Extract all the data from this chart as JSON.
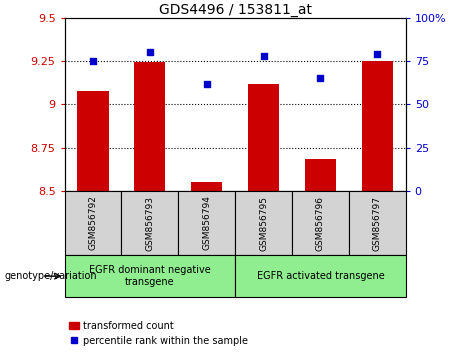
{
  "title": "GDS4496 / 153811_at",
  "categories": [
    "GSM856792",
    "GSM856793",
    "GSM856794",
    "GSM856795",
    "GSM856796",
    "GSM856797"
  ],
  "bar_values": [
    9.08,
    9.245,
    8.555,
    9.12,
    8.685,
    9.25
  ],
  "dot_values": [
    75,
    80,
    62,
    78,
    65,
    79
  ],
  "ylim_left": [
    8.5,
    9.5
  ],
  "ylim_right": [
    0,
    100
  ],
  "yticks_left": [
    8.5,
    8.75,
    9.0,
    9.25,
    9.5
  ],
  "yticks_right": [
    0,
    25,
    50,
    75,
    100
  ],
  "bar_color": "#cc0000",
  "dot_color": "#0000cc",
  "bar_bottom": 8.5,
  "grid_values": [
    8.75,
    9.0,
    9.25
  ],
  "group1_label": "EGFR dominant negative\ntransgene",
  "group2_label": "EGFR activated transgene",
  "group1_indices": [
    0,
    1,
    2
  ],
  "group2_indices": [
    3,
    4,
    5
  ],
  "genotype_label": "genotype/variation",
  "legend_bar_label": "transformed count",
  "legend_dot_label": "percentile rank within the sample",
  "bar_color_left": "#cc0000",
  "dot_color_right": "#0000cc",
  "background_gray": "#d3d3d3",
  "background_green": "#90ee90",
  "fig_width": 4.61,
  "fig_height": 3.54,
  "dpi": 100
}
